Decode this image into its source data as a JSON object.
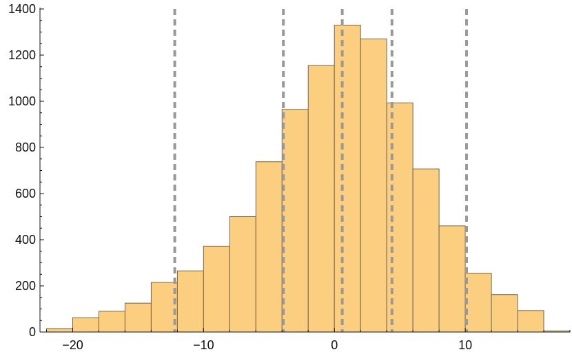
{
  "chart_data": {
    "type": "bar",
    "title": "",
    "xlabel": "",
    "ylabel": "",
    "xlim": [
      -22.5,
      18.0
    ],
    "ylim": [
      0,
      1400
    ],
    "x_ticks": [
      -20,
      -10,
      0,
      10
    ],
    "x_tick_labels": [
      "−20",
      "−10",
      "0",
      "10"
    ],
    "y_ticks": [
      0,
      200,
      400,
      600,
      800,
      1000,
      1200,
      1400
    ],
    "y_tick_labels": [
      "0",
      "200",
      "400",
      "600",
      "800",
      "1000",
      "1200",
      "1400"
    ],
    "bin_edges": [
      -22,
      -20,
      -18,
      -16,
      -14,
      -12,
      -10,
      -8,
      -6,
      -4,
      -2,
      0,
      2,
      4,
      6,
      8,
      10,
      12,
      14,
      16,
      18
    ],
    "values": [
      15,
      62,
      90,
      125,
      215,
      265,
      372,
      500,
      738,
      965,
      1155,
      1330,
      1270,
      993,
      707,
      460,
      255,
      162,
      93,
      5
    ],
    "reference_lines_x": [
      -12.2,
      -3.9,
      0.6,
      4.4,
      10.1
    ],
    "grid": false,
    "colors": {
      "bar_fill": "#fccf80",
      "bar_stroke": "#666666",
      "reference_line": "#999999",
      "axis": "#111111"
    }
  }
}
